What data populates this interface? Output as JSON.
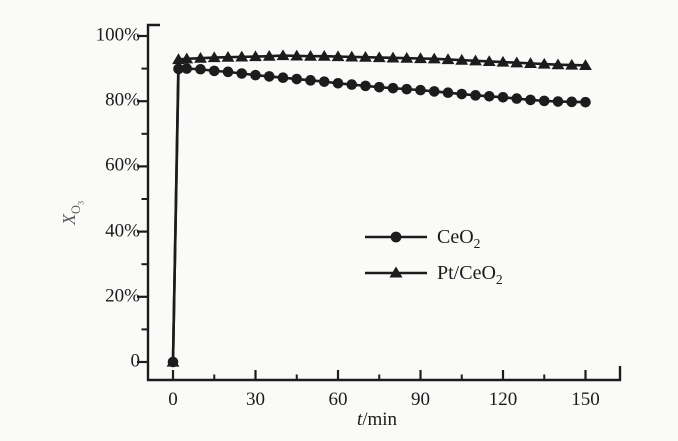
{
  "figure": {
    "background": "#fafaf8",
    "ink": "#1c1c1c",
    "ylabel_color": "#5a5a5a"
  },
  "chart_data": {
    "type": "line",
    "title": "",
    "xlabel": "t/min",
    "xlabel_base": "t",
    "xlabel_rest": "/min",
    "ylabel": "X_O3",
    "ylabel_base": "X",
    "ylabel_sub_base": "O",
    "ylabel_sub_sub": "3",
    "xlim": [
      0,
      163
    ],
    "ylim": [
      0,
      107
    ],
    "grid": false,
    "legend_position": "center-right",
    "x_ticks": {
      "values": [
        0,
        30,
        60,
        90,
        120,
        150
      ],
      "labels": [
        "0",
        "30",
        "60",
        "90",
        "120",
        "150"
      ]
    },
    "x_minor_ticks": [
      15,
      45,
      75,
      105,
      135
    ],
    "y_ticks": {
      "values": [
        0,
        20,
        40,
        60,
        80,
        100
      ],
      "labels": [
        "0",
        "20%",
        "40%",
        "60%",
        "80%",
        "100%"
      ]
    },
    "y_minor_ticks": [
      10,
      30,
      50,
      70,
      90
    ],
    "x": [
      0,
      2,
      5,
      10,
      15,
      20,
      25,
      30,
      35,
      40,
      45,
      50,
      55,
      60,
      65,
      70,
      75,
      80,
      85,
      90,
      95,
      100,
      105,
      110,
      115,
      120,
      125,
      130,
      135,
      140,
      145,
      150
    ],
    "series": [
      {
        "name": "CeO2",
        "label_base": "CeO",
        "label_sub": "2",
        "marker": "circle",
        "values": [
          0,
          89.9,
          90,
          89.8,
          89.3,
          89,
          88.5,
          88,
          87.6,
          87.2,
          86.8,
          86.4,
          86,
          85.5,
          85.1,
          84.7,
          84.3,
          84,
          83.7,
          83.4,
          83,
          82.6,
          82.2,
          81.8,
          81.5,
          81.2,
          80.8,
          80.4,
          80.1,
          79.9,
          79.8,
          79.7
        ]
      },
      {
        "name": "Pt-CeO2",
        "label_base": "Pt/CeO",
        "label_sub": "2",
        "marker": "triangle",
        "values": [
          0,
          92.8,
          93,
          93.2,
          93.4,
          93.5,
          93.6,
          93.7,
          93.8,
          94,
          93.9,
          93.8,
          93.8,
          93.7,
          93.6,
          93.5,
          93.4,
          93.3,
          93.2,
          93.1,
          93,
          92.8,
          92.6,
          92.4,
          92.2,
          92,
          91.8,
          91.6,
          91.4,
          91.2,
          91.1,
          91
        ]
      }
    ]
  }
}
